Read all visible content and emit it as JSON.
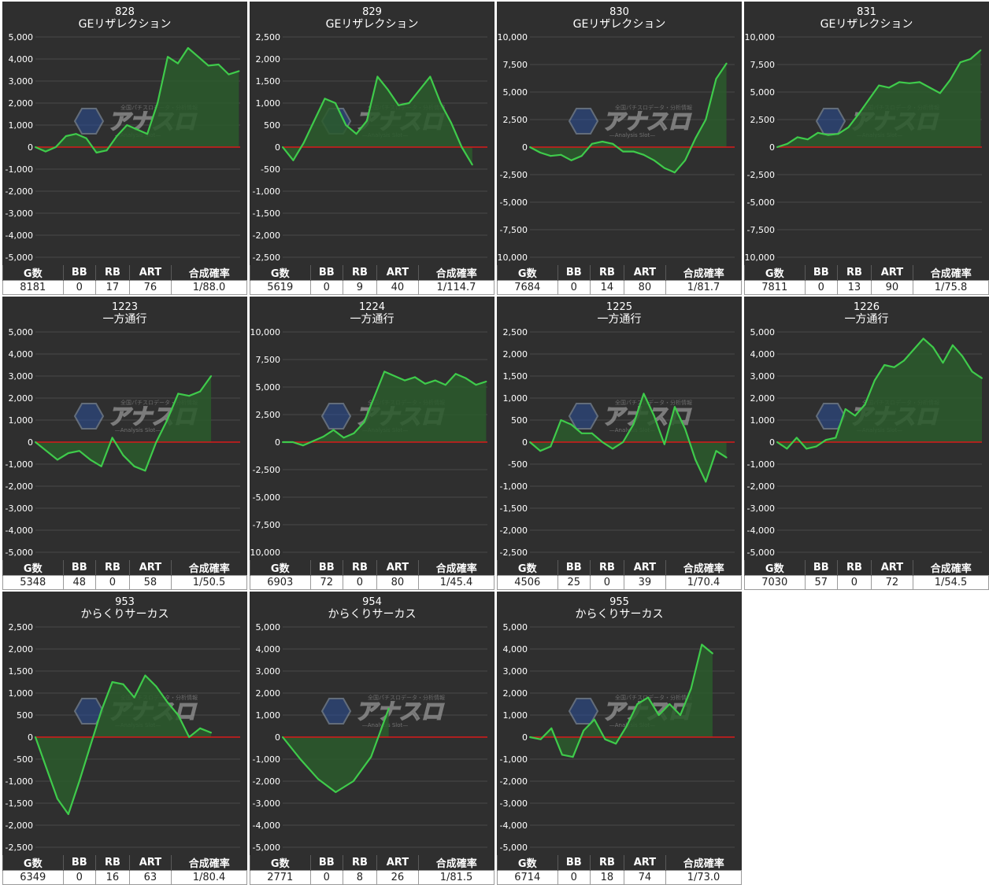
{
  "colors": {
    "background": "#2f2f2f",
    "line": "#3fcb4b",
    "fill": "#2a5a2c",
    "zero_line": "#d81a1a",
    "grid": "#4a4a4a",
    "text": "#ffffff"
  },
  "watermark": {
    "logo_text": "アナスロ",
    "sub_text": "—Analysis Slot—",
    "tagline": "全国パチスロデータ・分析情報"
  },
  "stat_headers": [
    "G数",
    "BB",
    "RB",
    "ART",
    "合成確率"
  ],
  "chart_data": [
    {
      "type": "area",
      "title": "828",
      "subtitle": "GEリザレクション",
      "ylim": [
        -5000,
        5000
      ],
      "yticks": [
        "5,000",
        "4,000",
        "3,000",
        "2,000",
        "1,000",
        "0",
        "-1,000",
        "-2,000",
        "-3,000",
        "-4,000",
        "-5,000"
      ],
      "y": [
        0,
        -200,
        0,
        500,
        600,
        400,
        -250,
        -150,
        500,
        1000,
        800,
        600,
        2000,
        4100,
        3800,
        4500,
        4100,
        3700,
        3750,
        3300,
        3450
      ],
      "stats": [
        "8181",
        "0",
        "17",
        "76",
        "1/88.0"
      ]
    },
    {
      "type": "area",
      "title": "829",
      "subtitle": "GEリザレクション",
      "ylim": [
        -2500,
        2500
      ],
      "yticks": [
        "2,500",
        "2,000",
        "1,500",
        "1,000",
        "500",
        "0",
        "-500",
        "-1,000",
        "-1,500",
        "-2,000",
        "-2,500"
      ],
      "y": [
        0,
        -300,
        100,
        600,
        1100,
        1000,
        500,
        300,
        600,
        1600,
        1300,
        950,
        1000,
        1300,
        1600,
        1000,
        550,
        0,
        -400
      ],
      "stats": [
        "5619",
        "0",
        "9",
        "40",
        "1/114.7"
      ]
    },
    {
      "type": "area",
      "title": "830",
      "subtitle": "GEリザレクション",
      "ylim": [
        -10000,
        10000
      ],
      "yticks": [
        "10,000",
        "7,500",
        "5,000",
        "2,500",
        "0",
        "-2,500",
        "-5,000",
        "-7,500",
        "-10,000"
      ],
      "y": [
        0,
        -500,
        -800,
        -700,
        -1200,
        -800,
        300,
        500,
        300,
        -400,
        -400,
        -700,
        -1200,
        -1900,
        -2300,
        -1200,
        800,
        2500,
        6200,
        7600
      ],
      "stats": [
        "7684",
        "0",
        "14",
        "80",
        "1/81.7"
      ]
    },
    {
      "type": "area",
      "title": "831",
      "subtitle": "GEリザレクション",
      "ylim": [
        -10000,
        10000
      ],
      "yticks": [
        "10,000",
        "7,500",
        "5,000",
        "2,500",
        "0",
        "-2,500",
        "-5,000",
        "-7,500",
        "-10,000"
      ],
      "y": [
        0,
        300,
        900,
        700,
        1300,
        1100,
        1200,
        1800,
        3000,
        4300,
        5600,
        5400,
        5900,
        5800,
        5900,
        5400,
        4900,
        6100,
        7700,
        8000,
        8800
      ],
      "stats": [
        "7811",
        "0",
        "13",
        "90",
        "1/75.8"
      ]
    },
    {
      "type": "area",
      "title": "1223",
      "subtitle": "一方通行",
      "ylim": [
        -5000,
        5000
      ],
      "yticks": [
        "5,000",
        "4,000",
        "3,000",
        "2,000",
        "1,000",
        "0",
        "-1,000",
        "-2,000",
        "-3,000",
        "-4,000",
        "-5,000"
      ],
      "y": [
        0,
        -400,
        -800,
        -500,
        -400,
        -800,
        -1100,
        200,
        -600,
        -1100,
        -1300,
        0,
        1000,
        2200,
        2100,
        2300,
        3000
      ],
      "stats": [
        "5348",
        "48",
        "0",
        "58",
        "1/50.5"
      ]
    },
    {
      "type": "area",
      "title": "1224",
      "subtitle": "一方通行",
      "ylim": [
        -10000,
        10000
      ],
      "yticks": [
        "10,000",
        "7,500",
        "5,000",
        "2,500",
        "0",
        "-2,500",
        "-5,000",
        "-7,500",
        "-10,000"
      ],
      "y": [
        0,
        0,
        -300,
        100,
        500,
        1100,
        400,
        800,
        1800,
        4100,
        6400,
        6000,
        5600,
        5900,
        5300,
        5600,
        5200,
        6200,
        5800,
        5200,
        5500
      ],
      "stats": [
        "6903",
        "72",
        "0",
        "80",
        "1/45.4"
      ]
    },
    {
      "type": "area",
      "title": "1225",
      "subtitle": "一方通行",
      "ylim": [
        -2500,
        2500
      ],
      "yticks": [
        "2,500",
        "2,000",
        "1,500",
        "1,000",
        "500",
        "0",
        "-500",
        "-1,000",
        "-1,500",
        "-2,000",
        "-2,500"
      ],
      "y": [
        0,
        -200,
        -100,
        500,
        400,
        200,
        200,
        0,
        -150,
        0,
        400,
        1100,
        600,
        -50,
        800,
        300,
        -400,
        -900,
        -200,
        -350
      ],
      "stats": [
        "4506",
        "25",
        "0",
        "39",
        "1/70.4"
      ]
    },
    {
      "type": "area",
      "title": "1226",
      "subtitle": "一方通行",
      "ylim": [
        -5000,
        5000
      ],
      "yticks": [
        "5,000",
        "4,000",
        "3,000",
        "2,000",
        "1,000",
        "0",
        "-1,000",
        "-2,000",
        "-3,000",
        "-4,000",
        "-5,000"
      ],
      "y": [
        0,
        -300,
        200,
        -300,
        -200,
        100,
        200,
        1500,
        1200,
        1700,
        2800,
        3500,
        3400,
        3700,
        4200,
        4700,
        4300,
        3600,
        4400,
        3900,
        3200,
        2900
      ],
      "stats": [
        "7030",
        "57",
        "0",
        "72",
        "1/54.5"
      ]
    },
    {
      "type": "area",
      "title": "953",
      "subtitle": "からくりサーカス",
      "ylim": [
        -2500,
        2500
      ],
      "yticks": [
        "2,500",
        "2,000",
        "1,500",
        "1,000",
        "500",
        "0",
        "-500",
        "-1,000",
        "-1,500",
        "-2,000",
        "-2,500"
      ],
      "y": [
        0,
        -700,
        -1400,
        -1750,
        -1000,
        -200,
        600,
        1250,
        1200,
        900,
        1400,
        1150,
        800,
        500,
        0,
        200,
        100
      ],
      "stats": [
        "6349",
        "0",
        "16",
        "63",
        "1/80.4"
      ]
    },
    {
      "type": "area",
      "title": "954",
      "subtitle": "からくりサーカス",
      "ylim": [
        -5000,
        5000
      ],
      "yticks": [
        "5,000",
        "4,000",
        "3,000",
        "2,000",
        "1,000",
        "0",
        "-1,000",
        "-2,000",
        "-3,000",
        "-4,000",
        "-5,000"
      ],
      "y": [
        0,
        -1000,
        -1900,
        -2500,
        -2000,
        -900,
        1300
      ],
      "stats": [
        "2771",
        "0",
        "8",
        "26",
        "1/81.5"
      ]
    },
    {
      "type": "area",
      "title": "955",
      "subtitle": "からくりサーカス",
      "ylim": [
        -5000,
        5000
      ],
      "yticks": [
        "5,000",
        "4,000",
        "3,000",
        "2,000",
        "1,000",
        "0",
        "-1,000",
        "-2,000",
        "-3,000",
        "-4,000",
        "-5,000"
      ],
      "y": [
        0,
        -100,
        400,
        -800,
        -900,
        300,
        800,
        -100,
        -300,
        500,
        1500,
        1800,
        1000,
        1500,
        1000,
        2200,
        4200,
        3800
      ],
      "stats": [
        "6714",
        "0",
        "18",
        "74",
        "1/73.0"
      ]
    }
  ]
}
